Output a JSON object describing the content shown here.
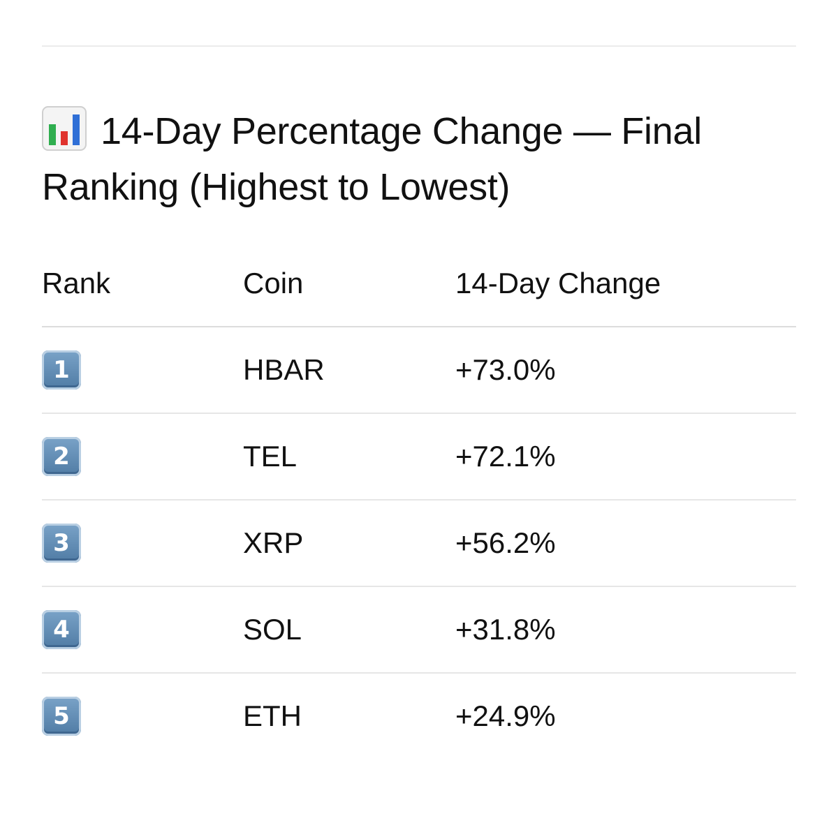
{
  "title": "14-Day Percentage Change — Final Ranking (Highest to Lowest)",
  "title_icon": "bar-chart-icon",
  "table": {
    "headers": {
      "rank": "Rank",
      "coin": "Coin",
      "change": "14-Day Change"
    },
    "rows": [
      {
        "rank": "1",
        "coin": "HBAR",
        "change": "+73.0%"
      },
      {
        "rank": "2",
        "coin": "TEL",
        "change": "+72.1%"
      },
      {
        "rank": "3",
        "coin": "XRP",
        "change": "+56.2%"
      },
      {
        "rank": "4",
        "coin": "SOL",
        "change": "+31.8%"
      },
      {
        "rank": "5",
        "coin": "ETH",
        "change": "+24.9%"
      }
    ]
  },
  "colors": {
    "keycap": "#5f8bb4",
    "chart_green": "#2fae4f",
    "chart_red": "#e0332e",
    "chart_blue": "#2f6fd6"
  }
}
